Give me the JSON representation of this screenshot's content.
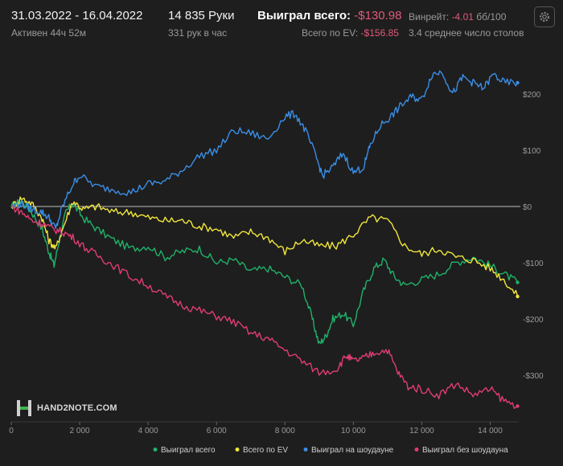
{
  "header": {
    "date_range": "31.03.2022 - 16.04.2022",
    "active": "Активен 44ч 52м",
    "hands": "14 835 Руки",
    "hands_per_hour": "331 рук в час",
    "won_total_label": "Выиграл всего:",
    "won_total_value": "-$130.98",
    "ev_total_label": "Всего по EV:",
    "ev_total_value": "-$156.85",
    "winrate_label": "Винрейт:",
    "winrate_value": "-4.01",
    "winrate_unit": "бб/100",
    "avg_tables": "3.4 среднее число столов"
  },
  "logo_text": "HAND2NOTE.COM",
  "icons": {
    "settings": "gear-icon",
    "logo": "h2n-logo-icon"
  },
  "chart_data": {
    "type": "line",
    "xlim": [
      0,
      14835
    ],
    "ylim": [
      -350,
      260
    ],
    "x_ticks": [
      0,
      2000,
      4000,
      6000,
      8000,
      10000,
      12000,
      14000
    ],
    "x_tick_labels": [
      "0",
      "2 000",
      "4 000",
      "6 000",
      "8 000",
      "10 000",
      "12 000",
      "14 000"
    ],
    "y_ticks": [
      200,
      100,
      0,
      -100,
      -200,
      -300
    ],
    "y_tick_labels": [
      "$200",
      "$100",
      "$0",
      "-$100",
      "-$200",
      "-$300"
    ],
    "grid": false,
    "legend_position": "bottom",
    "series": [
      {
        "name": "Выиграл всего",
        "color": "#1fb26a",
        "x": [
          0,
          300,
          600,
          900,
          1100,
          1250,
          1400,
          1600,
          1800,
          2100,
          2500,
          3000,
          3500,
          4000,
          4500,
          5000,
          5500,
          6000,
          6500,
          7000,
          7500,
          8000,
          8500,
          8800,
          9000,
          9200,
          9400,
          9700,
          10000,
          10300,
          10600,
          10900,
          11200,
          11500,
          12000,
          12500,
          13000,
          13500,
          14000,
          14400,
          14800
        ],
        "y": [
          0,
          10,
          -10,
          -40,
          -80,
          -105,
          -60,
          -10,
          5,
          -20,
          -40,
          -60,
          -75,
          -70,
          -90,
          -80,
          -75,
          -100,
          -95,
          -115,
          -110,
          -125,
          -140,
          -200,
          -245,
          -230,
          -200,
          -190,
          -210,
          -150,
          -110,
          -95,
          -125,
          -140,
          -130,
          -120,
          -100,
          -90,
          -105,
          -120,
          -135
        ]
      },
      {
        "name": "Всего по EV",
        "color": "#f0e63c",
        "x": [
          0,
          300,
          600,
          900,
          1100,
          1300,
          1500,
          1800,
          2100,
          2500,
          3000,
          3500,
          4000,
          4500,
          5000,
          5500,
          6000,
          6500,
          7000,
          7500,
          8000,
          8500,
          9000,
          9500,
          10000,
          10500,
          11000,
          11500,
          12000,
          12500,
          13000,
          13500,
          14000,
          14400,
          14800
        ],
        "y": [
          0,
          15,
          5,
          -20,
          -60,
          -75,
          -40,
          10,
          -5,
          0,
          -10,
          -10,
          -20,
          -25,
          -25,
          -35,
          -40,
          -55,
          -45,
          -55,
          -80,
          -60,
          -70,
          -70,
          -50,
          -20,
          -25,
          -70,
          -85,
          -75,
          -90,
          -95,
          -110,
          -130,
          -160
        ]
      },
      {
        "name": "Выиграл на шоудауне",
        "color": "#3a8ee6",
        "x": [
          0,
          300,
          600,
          900,
          1100,
          1300,
          1500,
          1800,
          2000,
          2500,
          3000,
          3500,
          4000,
          4500,
          5000,
          5500,
          6000,
          6500,
          7000,
          7500,
          8000,
          8300,
          8600,
          8900,
          9100,
          9400,
          9700,
          10000,
          10300,
          10500,
          10800,
          11100,
          11400,
          11700,
          12000,
          12300,
          12600,
          12900,
          13200,
          13500,
          13800,
          14100,
          14400,
          14800
        ],
        "y": [
          0,
          5,
          -5,
          -10,
          -20,
          -40,
          0,
          40,
          55,
          35,
          30,
          25,
          40,
          45,
          65,
          90,
          100,
          135,
          130,
          120,
          160,
          165,
          135,
          90,
          55,
          70,
          95,
          60,
          70,
          110,
          145,
          160,
          180,
          195,
          190,
          235,
          240,
          200,
          230,
          220,
          210,
          235,
          220,
          220
        ]
      },
      {
        "name": "Выиграл без шоудауна",
        "color": "#e03c74",
        "x": [
          0,
          300,
          600,
          900,
          1200,
          1500,
          1800,
          2200,
          2600,
          3000,
          3500,
          4000,
          4500,
          5000,
          5500,
          6000,
          6500,
          7000,
          7500,
          8000,
          8500,
          9000,
          9500,
          9800,
          10000,
          10300,
          10600,
          11000,
          11300,
          11600,
          12000,
          12500,
          13000,
          13500,
          14000,
          14400,
          14800
        ],
        "y": [
          0,
          -10,
          -25,
          -30,
          -40,
          -45,
          -55,
          -75,
          -90,
          -105,
          -125,
          -140,
          -160,
          -175,
          -185,
          -195,
          -205,
          -225,
          -235,
          -255,
          -275,
          -295,
          -290,
          -265,
          -275,
          -270,
          -260,
          -255,
          -295,
          -320,
          -325,
          -335,
          -315,
          -335,
          -325,
          -345,
          -355
        ]
      }
    ]
  }
}
